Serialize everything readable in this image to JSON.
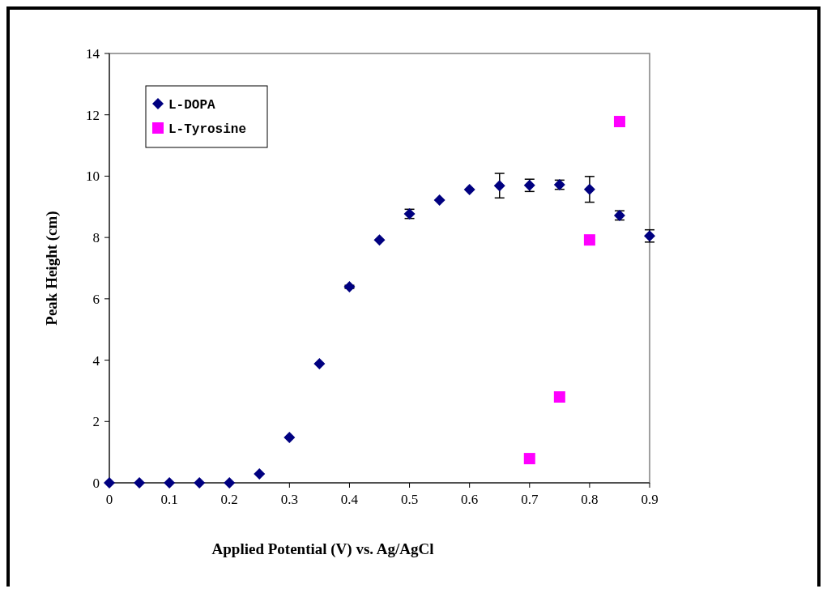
{
  "chart_data": {
    "type": "scatter",
    "xlabel": "Applied Potential (V) vs. Ag/AgCl",
    "ylabel": "Peak Height (cm)",
    "xlim": [
      0,
      0.9
    ],
    "xticks": [
      0,
      0.1,
      0.2,
      0.3,
      0.4,
      0.5,
      0.6,
      0.7,
      0.8,
      0.9
    ],
    "ylim": [
      0,
      14
    ],
    "yticks": [
      0,
      2,
      4,
      6,
      8,
      10,
      12,
      14
    ],
    "grid": false,
    "legend": "top left",
    "series": [
      {
        "name": "L-DOPA",
        "color": "#000080",
        "marker": "diamond",
        "x": [
          0,
          0.05,
          0.1,
          0.15,
          0.2,
          0.25,
          0.3,
          0.35,
          0.4,
          0.45,
          0.5,
          0.55,
          0.6,
          0.65,
          0.7,
          0.75,
          0.8,
          0.85,
          0.9
        ],
        "values": [
          0,
          0,
          0,
          0,
          0,
          0.29,
          1.48,
          3.88,
          6.39,
          7.92,
          8.77,
          9.22,
          9.56,
          9.69,
          9.7,
          9.72,
          9.57,
          8.72,
          8.05
        ],
        "errors": [
          null,
          null,
          null,
          null,
          null,
          null,
          null,
          null,
          0.05,
          null,
          0.15,
          null,
          null,
          0.4,
          0.2,
          0.15,
          0.42,
          0.15,
          0.2
        ]
      },
      {
        "name": "L-Tyrosine",
        "color": "#ff00ff",
        "marker": "square",
        "x": [
          0.7,
          0.75,
          0.8,
          0.85
        ],
        "values": [
          0.79,
          2.8,
          7.92,
          11.78
        ]
      }
    ]
  }
}
